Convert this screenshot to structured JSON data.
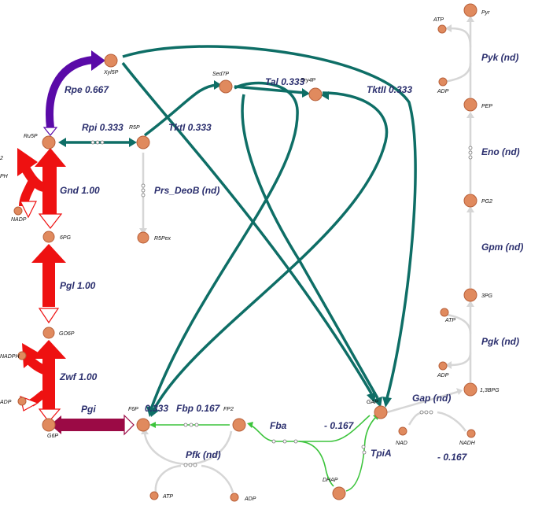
{
  "metabolites": {
    "xyl5p": "Xyl5P",
    "ru5p": "Ru5P",
    "r5p": "R5P",
    "sed7p": "Sed7P",
    "ery4p": "Ery4P",
    "r5pex": "R5Pex",
    "pg6": "6PG",
    "go6p": "GO6P",
    "g6p": "G6P",
    "f6p": "F6P",
    "fp2": "FP2",
    "gap": "GAP",
    "dhap": "DHAP",
    "pyr": "Pyr",
    "pep": "PEP",
    "pg2": "PG2",
    "pg3": "3PG",
    "bpg13": "1,3BPG",
    "atp": "ATP",
    "adp": "ADP",
    "nad": "NAD",
    "nadh": "NADH",
    "nadp": "NADP",
    "nadph": "NADPH",
    "nadph_frag": "PH",
    "nadp_frag2": "2"
  },
  "reactions": {
    "rpe": "Rpe 0.667",
    "rpi": "Rpi 0.333",
    "tkt1": "TktI 0.333",
    "tal": "Tal 0.333",
    "tkt2": "TktII 0.333",
    "prs": "Prs_DeoB (nd)",
    "gnd": "Gnd 1.00",
    "pgl": "Pgl 1.00",
    "zwf": "Zwf 1.00",
    "pgi": "Pgi",
    "pgi_value": "0.333",
    "fbp": "Fbp 0.167",
    "fba": "Fba",
    "fba_value": "-  0.167",
    "tpia": "TpiA",
    "gap_r": "Gap (nd)",
    "gap_value": "-  0.167",
    "pfk": "Pfk (nd)",
    "pgk": "Pgk (nd)",
    "gpm": "Gpm (nd)",
    "eno": "Eno (nd)",
    "pyk": "Pyk (nd)"
  },
  "colors": {
    "node": "#e08a5e",
    "teal": "#0e6e66",
    "red": "#ee1111",
    "purple": "#5a0aa8",
    "maroon": "#9b0a45",
    "green": "#3cc43c",
    "grey": "#d6d6d6",
    "label": "#2b2f6e"
  }
}
